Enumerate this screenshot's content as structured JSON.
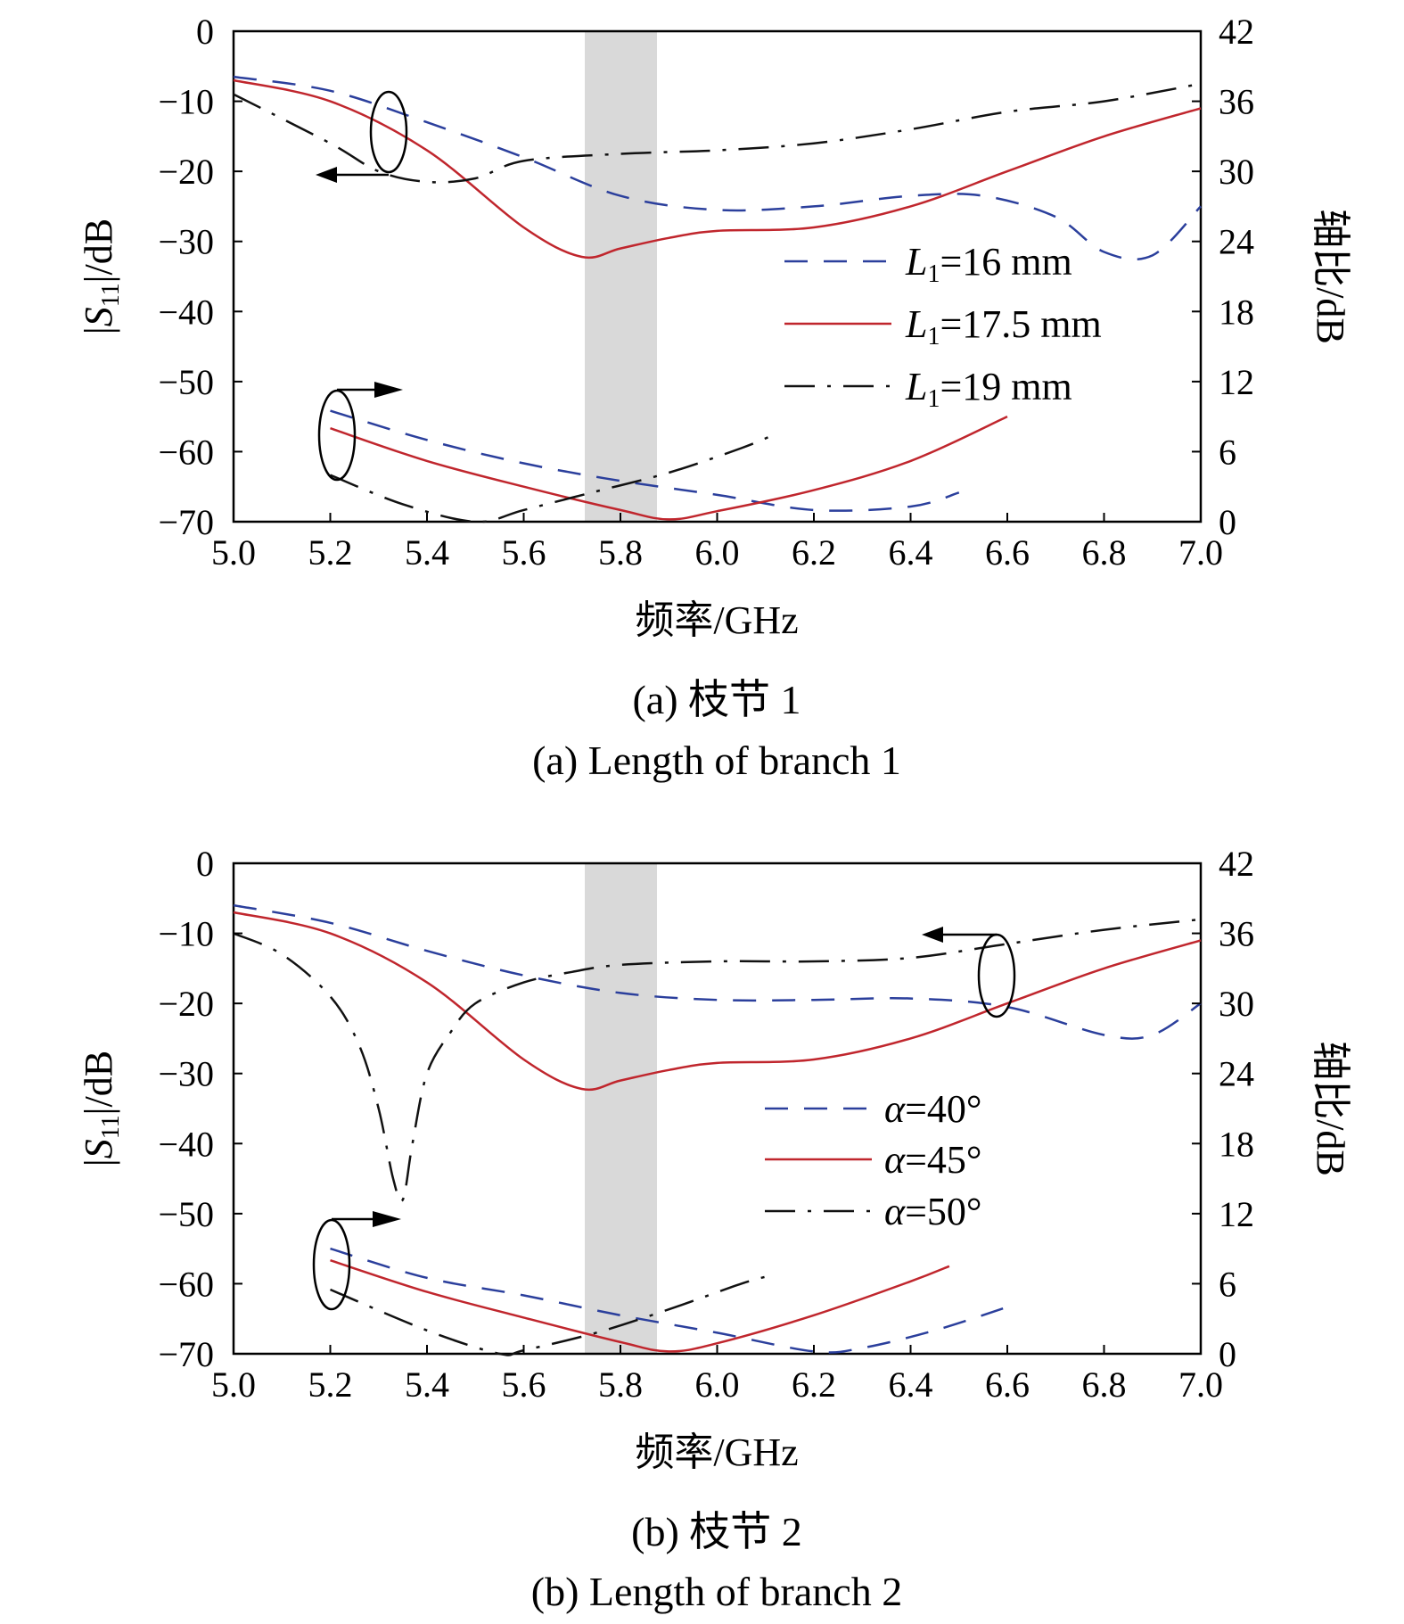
{
  "chart_data": [
    {
      "type": "line",
      "caption_cn": "(a) 枝节 1",
      "caption_en": "(a) Length of branch 1",
      "xlabel": "频率/GHz",
      "ylabel_left": "|S11|/dB",
      "ylabel_right": "轴比/dB",
      "xlim": [
        5.0,
        7.0
      ],
      "ylim_left": [
        -70,
        0
      ],
      "ylim_right": [
        0,
        42
      ],
      "xticks": [
        "5.0",
        "5.2",
        "5.4",
        "5.6",
        "5.8",
        "6.0",
        "6.2",
        "6.4",
        "6.6",
        "6.8",
        "7.0"
      ],
      "yticks_left": [
        "0",
        "−10",
        "−20",
        "−30",
        "−40",
        "−50",
        "−60",
        "−70"
      ],
      "yticks_right": [
        "42",
        "36",
        "30",
        "24",
        "18",
        "12",
        "6",
        "0"
      ],
      "shaded_band": [
        5.73,
        5.87
      ],
      "series": [
        {
          "name": "L1=16 mm",
          "legend_main": "L",
          "legend_sub": "1",
          "legend_rest": "=16 mm",
          "style": "dashed",
          "color": "#2b3f9c",
          "axis": "left",
          "x": [
            5.0,
            5.2,
            5.4,
            5.6,
            5.8,
            6.0,
            6.2,
            6.4,
            6.55,
            6.7,
            6.8,
            6.9,
            7.0
          ],
          "y": [
            -6.5,
            -8.5,
            -13,
            -18,
            -23.5,
            -25.5,
            -25,
            -23.5,
            -23.5,
            -26.5,
            -31.5,
            -32,
            -25
          ]
        },
        {
          "name": "L1=17.5 mm",
          "legend_main": "L",
          "legend_sub": "1",
          "legend_rest": "=17.5 mm",
          "style": "solid",
          "color": "#c0262d",
          "axis": "left",
          "x": [
            5.0,
            5.2,
            5.4,
            5.6,
            5.72,
            5.8,
            5.9,
            6.0,
            6.2,
            6.4,
            6.6,
            6.8,
            7.0
          ],
          "y": [
            -7,
            -10,
            -17,
            -28,
            -32.2,
            -31,
            -29.5,
            -28.5,
            -28,
            -25,
            -20,
            -15,
            -11
          ]
        },
        {
          "name": "L1=19 mm",
          "legend_main": "L",
          "legend_sub": "1",
          "legend_rest": "=19 mm",
          "style": "dashdot",
          "color": "#111111",
          "axis": "left",
          "x": [
            5.0,
            5.2,
            5.3,
            5.4,
            5.5,
            5.6,
            5.8,
            6.0,
            6.2,
            6.4,
            6.6,
            6.8,
            7.0
          ],
          "y": [
            -9,
            -16,
            -20,
            -21.5,
            -21,
            -18.5,
            -17.5,
            -17,
            -16,
            -14,
            -11.5,
            -10,
            -7.5
          ]
        },
        {
          "name": "L1=16 mm AR",
          "style": "dashed",
          "color": "#2b3f9c",
          "axis": "right",
          "x": [
            5.2,
            5.4,
            5.6,
            5.8,
            6.0,
            6.2,
            6.4,
            6.5
          ],
          "y": [
            9.5,
            7.0,
            5.0,
            3.5,
            2.3,
            1.0,
            1.3,
            2.5
          ]
        },
        {
          "name": "L1=17.5 mm AR",
          "style": "solid",
          "color": "#c0262d",
          "axis": "right",
          "x": [
            5.2,
            5.4,
            5.6,
            5.8,
            5.9,
            6.0,
            6.2,
            6.4,
            6.6
          ],
          "y": [
            8.0,
            5.2,
            3.0,
            1.0,
            0.2,
            0.9,
            2.7,
            5.2,
            9.0
          ]
        },
        {
          "name": "L1=19 mm AR",
          "style": "dashdot",
          "color": "#111111",
          "axis": "right",
          "x": [
            5.2,
            5.35,
            5.5,
            5.6,
            5.75,
            5.9,
            6.05,
            6.12
          ],
          "y": [
            4.0,
            1.5,
            0.0,
            1.0,
            2.6,
            4.2,
            6.3,
            7.5
          ]
        }
      ]
    },
    {
      "type": "line",
      "caption_cn": "(b) 枝节 2",
      "caption_en": "(b) Length of branch 2",
      "xlabel": "频率/GHz",
      "ylabel_left": "|S11|/dB",
      "ylabel_right": "轴比/dB",
      "xlim": [
        5.0,
        7.0
      ],
      "ylim_left": [
        -70,
        0
      ],
      "ylim_right": [
        0,
        42
      ],
      "xticks": [
        "5.0",
        "5.2",
        "5.4",
        "5.6",
        "5.8",
        "6.0",
        "6.2",
        "6.4",
        "6.6",
        "6.8",
        "7.0"
      ],
      "yticks_left": [
        "0",
        "−10",
        "−20",
        "−30",
        "−40",
        "−50",
        "−60",
        "−70"
      ],
      "yticks_right": [
        "42",
        "36",
        "30",
        "24",
        "18",
        "12",
        "6",
        "0"
      ],
      "shaded_band": [
        5.73,
        5.87
      ],
      "series": [
        {
          "name": "α=40°",
          "legend_main": "α",
          "legend_sub": "",
          "legend_rest": "=40°",
          "style": "dashed",
          "color": "#2b3f9c",
          "axis": "left",
          "x": [
            5.0,
            5.2,
            5.4,
            5.6,
            5.8,
            6.0,
            6.2,
            6.4,
            6.6,
            6.8,
            6.9,
            7.0
          ],
          "y": [
            -6,
            -8.5,
            -12.5,
            -16,
            -18.5,
            -19.5,
            -19.5,
            -19.3,
            -20.5,
            -24.5,
            -24.5,
            -20
          ]
        },
        {
          "name": "α=45°",
          "legend_main": "α",
          "legend_sub": "",
          "legend_rest": "=45°",
          "style": "solid",
          "color": "#c0262d",
          "axis": "left",
          "x": [
            5.0,
            5.2,
            5.4,
            5.6,
            5.72,
            5.8,
            5.9,
            6.0,
            6.2,
            6.4,
            6.6,
            6.8,
            7.0
          ],
          "y": [
            -7,
            -10,
            -17,
            -28,
            -32.2,
            -31,
            -29.5,
            -28.5,
            -28,
            -25,
            -20,
            -15,
            -11
          ]
        },
        {
          "name": "α=50°",
          "legend_main": "α",
          "legend_sub": "",
          "legend_rest": "=50°",
          "style": "dashdot",
          "color": "#111111",
          "axis": "left",
          "x": [
            5.0,
            5.1,
            5.2,
            5.26,
            5.3,
            5.33,
            5.35,
            5.37,
            5.4,
            5.45,
            5.5,
            5.6,
            5.7,
            5.8,
            6.0,
            6.2,
            6.4,
            6.6,
            6.8,
            7.0
          ],
          "y": [
            -10,
            -13,
            -19,
            -26,
            -35,
            -45,
            -48,
            -40,
            -30,
            -24,
            -20,
            -17,
            -15.5,
            -14.5,
            -14,
            -14,
            -13.5,
            -11.5,
            -9.5,
            -8
          ]
        },
        {
          "name": "α=40° AR",
          "style": "dashed",
          "color": "#2b3f9c",
          "axis": "right",
          "x": [
            5.2,
            5.4,
            5.6,
            5.8,
            6.0,
            6.2,
            6.3,
            6.45,
            6.6
          ],
          "y": [
            9.0,
            6.5,
            5.0,
            3.3,
            1.8,
            0.2,
            0.5,
            2.0,
            4.0
          ]
        },
        {
          "name": "α=45° AR",
          "style": "solid",
          "color": "#c0262d",
          "axis": "right",
          "x": [
            5.2,
            5.4,
            5.6,
            5.8,
            5.9,
            6.0,
            6.2,
            6.4,
            6.48
          ],
          "y": [
            8.0,
            5.3,
            3.1,
            1.0,
            0.2,
            0.9,
            3.3,
            6.2,
            7.5
          ]
        },
        {
          "name": "α=50° AR",
          "style": "dashdot",
          "color": "#111111",
          "axis": "right",
          "x": [
            5.2,
            5.4,
            5.55,
            5.6,
            5.75,
            5.9,
            6.05,
            6.12
          ],
          "y": [
            5.5,
            2.0,
            0.0,
            0.3,
            1.8,
            3.8,
            6.0,
            6.8
          ]
        }
      ]
    }
  ]
}
